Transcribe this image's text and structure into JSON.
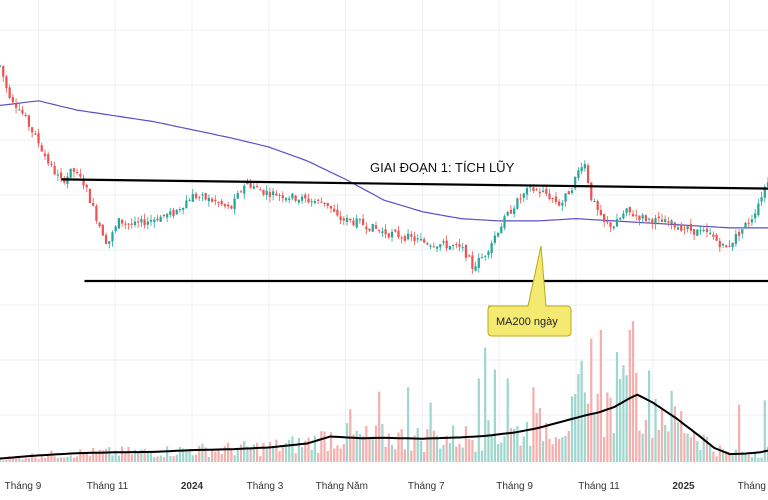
{
  "chart_data": {
    "type": "candlestick",
    "title": "",
    "xlabel": "",
    "ylabel": "",
    "grid": true,
    "x_tick_labels": [
      {
        "label": "Tháng 9",
        "bold": false,
        "t": 0.03
      },
      {
        "label": "Tháng 11",
        "bold": false,
        "t": 0.14
      },
      {
        "label": "2024",
        "bold": true,
        "t": 0.25
      },
      {
        "label": "Tháng 3",
        "bold": false,
        "t": 0.345
      },
      {
        "label": "Tháng Năm",
        "bold": false,
        "t": 0.445
      },
      {
        "label": "Tháng 7",
        "bold": false,
        "t": 0.555
      },
      {
        "label": "Tháng 9",
        "bold": false,
        "t": 0.67
      },
      {
        "label": "Tháng 11",
        "bold": false,
        "t": 0.78
      },
      {
        "label": "2025",
        "bold": true,
        "t": 0.89
      },
      {
        "label": "Tháng",
        "bold": false,
        "t": 0.985
      }
    ],
    "price_anchors": [
      [
        0.0,
        0.93
      ],
      [
        0.01,
        0.82
      ],
      [
        0.03,
        0.72
      ],
      [
        0.05,
        0.6
      ],
      [
        0.065,
        0.5
      ],
      [
        0.08,
        0.43
      ],
      [
        0.095,
        0.48
      ],
      [
        0.11,
        0.42
      ],
      [
        0.125,
        0.28
      ],
      [
        0.14,
        0.16
      ],
      [
        0.155,
        0.26
      ],
      [
        0.175,
        0.24
      ],
      [
        0.2,
        0.27
      ],
      [
        0.225,
        0.29
      ],
      [
        0.25,
        0.37
      ],
      [
        0.275,
        0.35
      ],
      [
        0.3,
        0.31
      ],
      [
        0.32,
        0.43
      ],
      [
        0.34,
        0.39
      ],
      [
        0.37,
        0.37
      ],
      [
        0.4,
        0.35
      ],
      [
        0.425,
        0.34
      ],
      [
        0.44,
        0.27
      ],
      [
        0.47,
        0.25
      ],
      [
        0.5,
        0.21
      ],
      [
        0.53,
        0.19
      ],
      [
        0.55,
        0.17
      ],
      [
        0.57,
        0.16
      ],
      [
        0.59,
        0.15
      ],
      [
        0.605,
        0.13
      ],
      [
        0.615,
        0.06
      ],
      [
        0.63,
        0.11
      ],
      [
        0.65,
        0.23
      ],
      [
        0.67,
        0.33
      ],
      [
        0.69,
        0.4
      ],
      [
        0.71,
        0.38
      ],
      [
        0.73,
        0.33
      ],
      [
        0.745,
        0.41
      ],
      [
        0.76,
        0.53
      ],
      [
        0.77,
        0.36
      ],
      [
        0.785,
        0.25
      ],
      [
        0.8,
        0.24
      ],
      [
        0.815,
        0.3
      ],
      [
        0.84,
        0.27
      ],
      [
        0.87,
        0.25
      ],
      [
        0.9,
        0.22
      ],
      [
        0.925,
        0.2
      ],
      [
        0.945,
        0.14
      ],
      [
        0.96,
        0.2
      ],
      [
        0.98,
        0.28
      ],
      [
        1.0,
        0.44
      ]
    ],
    "ma200_anchors": [
      [
        0.0,
        0.76
      ],
      [
        0.05,
        0.78
      ],
      [
        0.1,
        0.74
      ],
      [
        0.2,
        0.69
      ],
      [
        0.3,
        0.62
      ],
      [
        0.35,
        0.58
      ],
      [
        0.4,
        0.52
      ],
      [
        0.45,
        0.44
      ],
      [
        0.5,
        0.35
      ],
      [
        0.55,
        0.3
      ],
      [
        0.6,
        0.27
      ],
      [
        0.65,
        0.26
      ],
      [
        0.7,
        0.26
      ],
      [
        0.75,
        0.27
      ],
      [
        0.8,
        0.26
      ],
      [
        0.85,
        0.25
      ],
      [
        0.9,
        0.24
      ],
      [
        0.95,
        0.23
      ],
      [
        1.0,
        0.23
      ]
    ],
    "volume_ma_anchors": [
      [
        0.0,
        0.08
      ],
      [
        0.05,
        0.15
      ],
      [
        0.1,
        0.2
      ],
      [
        0.15,
        0.22
      ],
      [
        0.2,
        0.23
      ],
      [
        0.25,
        0.27
      ],
      [
        0.3,
        0.29
      ],
      [
        0.35,
        0.33
      ],
      [
        0.4,
        0.42
      ],
      [
        0.43,
        0.58
      ],
      [
        0.47,
        0.54
      ],
      [
        0.5,
        0.55
      ],
      [
        0.55,
        0.53
      ],
      [
        0.6,
        0.56
      ],
      [
        0.63,
        0.59
      ],
      [
        0.67,
        0.67
      ],
      [
        0.7,
        0.77
      ],
      [
        0.73,
        0.91
      ],
      [
        0.76,
        1.05
      ],
      [
        0.78,
        1.13
      ],
      [
        0.8,
        1.25
      ],
      [
        0.82,
        1.45
      ],
      [
        0.83,
        1.53
      ],
      [
        0.85,
        1.35
      ],
      [
        0.88,
        1.0
      ],
      [
        0.91,
        0.6
      ],
      [
        0.93,
        0.32
      ],
      [
        0.95,
        0.18
      ],
      [
        0.97,
        0.19
      ],
      [
        0.99,
        0.22
      ],
      [
        1.0,
        0.26
      ]
    ],
    "volume_spikes": [
      [
        0.455,
        1.2
      ],
      [
        0.49,
        1.6
      ],
      [
        0.53,
        1.7
      ],
      [
        0.56,
        1.35
      ],
      [
        0.62,
        1.9
      ],
      [
        0.63,
        2.6
      ],
      [
        0.64,
        2.1
      ],
      [
        0.66,
        1.9
      ],
      [
        0.69,
        1.7
      ],
      [
        0.75,
        2.0
      ],
      [
        0.755,
        2.3
      ],
      [
        0.765,
        2.8
      ],
      [
        0.78,
        3.0
      ],
      [
        0.8,
        2.5
      ],
      [
        0.81,
        2.2
      ],
      [
        0.815,
        3.0
      ],
      [
        0.82,
        3.2
      ],
      [
        0.96,
        1.3
      ],
      [
        0.99,
        1.4
      ]
    ],
    "support_line": {
      "start": [
        0.11,
        0.0
      ],
      "end": [
        1.0,
        0.0
      ]
    },
    "resistance_line": {
      "start": [
        0.08,
        0.44
      ],
      "end": [
        1.0,
        0.4
      ]
    }
  },
  "annotations": {
    "phase_label": "GIAI ĐOẠN 1: TÍCH LŨY",
    "ma200_callout": "MA200 ngày"
  },
  "colors": {
    "up": "#26a69a",
    "down": "#ef5350",
    "ma200": "#5b4fc4",
    "volume_ma": "#000000",
    "volume_up": "#9fd6ce",
    "volume_down": "#f4b0ae",
    "callout_fill": "#f4ea72",
    "callout_stroke": "#b8a919",
    "grid": "#eceff3"
  }
}
